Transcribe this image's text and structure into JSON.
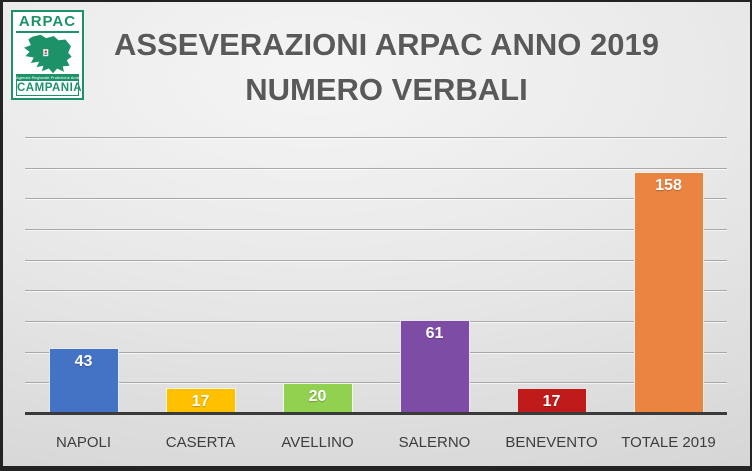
{
  "logo": {
    "brand": "ARPAC",
    "tagline": "Agenzia Regionale Protezione Ambientale",
    "region": "CAMPANIA",
    "green": "#1d9268"
  },
  "title": {
    "line1": "ASSEVERAZIONI ARPAC ANNO 2019",
    "line2": "NUMERO VERBALI",
    "color": "#595959"
  },
  "chart_data": {
    "type": "bar",
    "title": "ASSEVERAZIONI ARPAC ANNO 2019 NUMERO VERBALI",
    "categories": [
      "NAPOLI",
      "CASERTA",
      "AVELLINO",
      "SALERNO",
      "BENEVENTO",
      "TOTALE 2019"
    ],
    "values": [
      43,
      17,
      20,
      61,
      17,
      158
    ],
    "bar_colors": [
      "#4472C4",
      "#FFC000",
      "#92D050",
      "#7D4CA5",
      "#C01B1B",
      "#EB8440"
    ],
    "data_label_color": "#ffffff",
    "xlabel": "",
    "ylabel": "",
    "ylim": [
      0,
      180
    ],
    "gridline_step": 20,
    "grid": true,
    "gridline_color": "#a8a8a8",
    "axis_line_color": "#3a3a3a",
    "legend": false,
    "data_label_position": "inside-end",
    "y_tick_labels_visible": false
  }
}
